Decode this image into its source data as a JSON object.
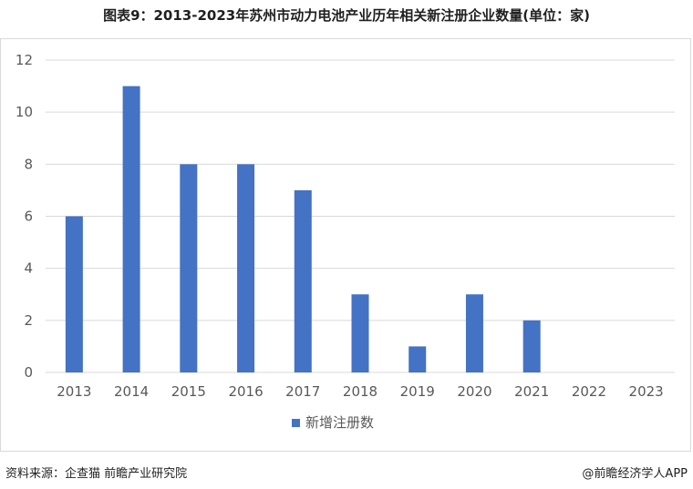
{
  "title": "图表9：2013-2023年苏州市动力电池产业历年相关新注册企业数量(单位：家)",
  "source": "资料来源：企查猫 前瞻产业研究院",
  "brand": "@前瞻经济学人APP",
  "colors": {
    "bar": "#4472C4",
    "grid": "#d9d9d9",
    "axis_text": "#595959"
  },
  "chart_data": {
    "type": "bar",
    "title": "",
    "xlabel": "",
    "ylabel": "",
    "categories": [
      "2013",
      "2014",
      "2015",
      "2016",
      "2017",
      "2018",
      "2019",
      "2020",
      "2021",
      "2022",
      "2023"
    ],
    "series": [
      {
        "name": "新增注册数",
        "values": [
          6,
          11,
          8,
          8,
          7,
          3,
          1,
          3,
          2,
          0,
          0
        ]
      }
    ],
    "ylim": [
      0,
      12
    ],
    "yticks": [
      0,
      2,
      4,
      6,
      8,
      10,
      12
    ],
    "grid": true,
    "legend_position": "bottom"
  }
}
